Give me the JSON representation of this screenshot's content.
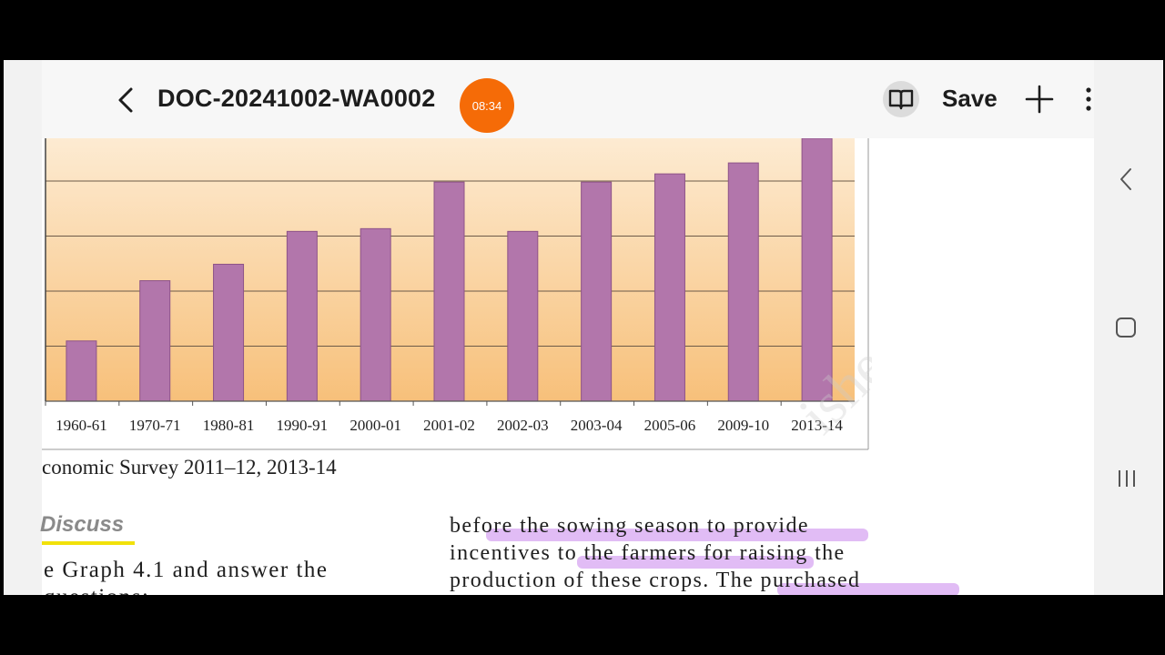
{
  "header": {
    "title": "DOC-20241002-WA0002",
    "timer": "08:34",
    "save_label": "Save",
    "icons": {
      "back": "chevron-left-icon",
      "reading_mode": "book-open-icon",
      "add": "plus-icon",
      "more": "more-vertical-icon"
    }
  },
  "chart_data": {
    "type": "bar",
    "categories": [
      "1960-61",
      "1970-71",
      "1980-81",
      "1990-91",
      "2000-01",
      "2001-02",
      "2002-03",
      "2003-04",
      "2005-06",
      "2009-10",
      "2013-14"
    ],
    "values": [
      11,
      22,
      25,
      31,
      31.5,
      40,
      31,
      40,
      41.5,
      43.5,
      48
    ],
    "ylim": [
      0,
      48
    ],
    "grid": true,
    "colors": {
      "bar": "#b276ab",
      "bar_edge": "#8e5488",
      "bg_top": "#fdebd2",
      "bg_bottom": "#f7c07a"
    }
  },
  "caption": "conomic Survey 2011–12, 2013-14",
  "discuss_heading": "Discuss",
  "left_text": [
    "e Graph 4.1 and answer the",
    "questions:"
  ],
  "right_text": [
    "before the sowing season to provide",
    "incentives to the farmers for raising the",
    "production of these crops. The purchased"
  ],
  "watermark": "not to be republished",
  "system_nav": {
    "icons": [
      "nav-back-icon",
      "nav-home-icon",
      "nav-recents-icon"
    ]
  },
  "colors": {
    "timer_bg": "#f56b07",
    "highlight": "#d7a6f2",
    "discuss_underline": "#f1e10a"
  }
}
